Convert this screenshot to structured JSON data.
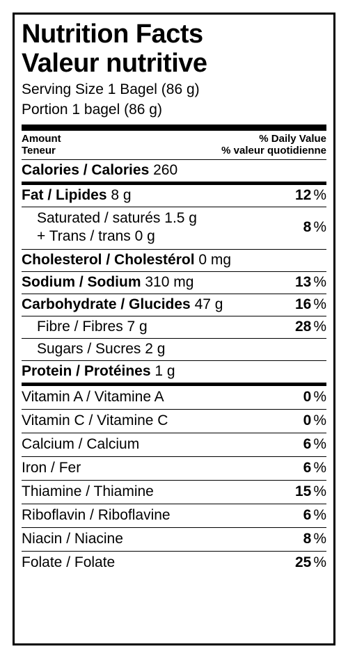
{
  "title_line1": "Nutrition Facts",
  "title_line2": "Valeur nutritive",
  "serving_en": "Serving Size 1 Bagel (86 g)",
  "serving_fr": "Portion 1 bagel (86 g)",
  "header_left_1": "Amount",
  "header_left_2": "Teneur",
  "header_right_1": "% Daily Value",
  "header_right_2": "% valeur quotidienne",
  "pct": "%",
  "calories": {
    "label": "Calories / Calories",
    "value": "260"
  },
  "fat": {
    "label": "Fat / Lipides",
    "value": "8 g",
    "dv": "12"
  },
  "sat_line1": "Saturated / saturés 1.5 g",
  "sat_line2": "+ Trans / trans 0 g",
  "sat_dv": "8",
  "cholesterol": {
    "label": "Cholesterol / Cholestérol",
    "value": "0 mg"
  },
  "sodium": {
    "label": "Sodium / Sodium",
    "value": "310 mg",
    "dv": "13"
  },
  "carb": {
    "label": "Carbohydrate / Glucides",
    "value": "47 g",
    "dv": "16"
  },
  "fibre": {
    "label": "Fibre / Fibres",
    "value": "7 g",
    "dv": "28"
  },
  "sugars": {
    "label": "Sugars / Sucres",
    "value": "2 g"
  },
  "protein": {
    "label": "Protein / Protéines",
    "value": "1 g"
  },
  "vitamins": [
    {
      "label": "Vitamin A / Vitamine A",
      "dv": "0"
    },
    {
      "label": "Vitamin C / Vitamine C",
      "dv": "0"
    },
    {
      "label": "Calcium / Calcium",
      "dv": "6"
    },
    {
      "label": "Iron / Fer",
      "dv": "6"
    },
    {
      "label": "Thiamine / Thiamine",
      "dv": "15"
    },
    {
      "label": "Riboflavin / Riboflavine",
      "dv": "6"
    },
    {
      "label": "Niacin / Niacine",
      "dv": "8"
    },
    {
      "label": "Folate / Folate",
      "dv": "25"
    }
  ]
}
